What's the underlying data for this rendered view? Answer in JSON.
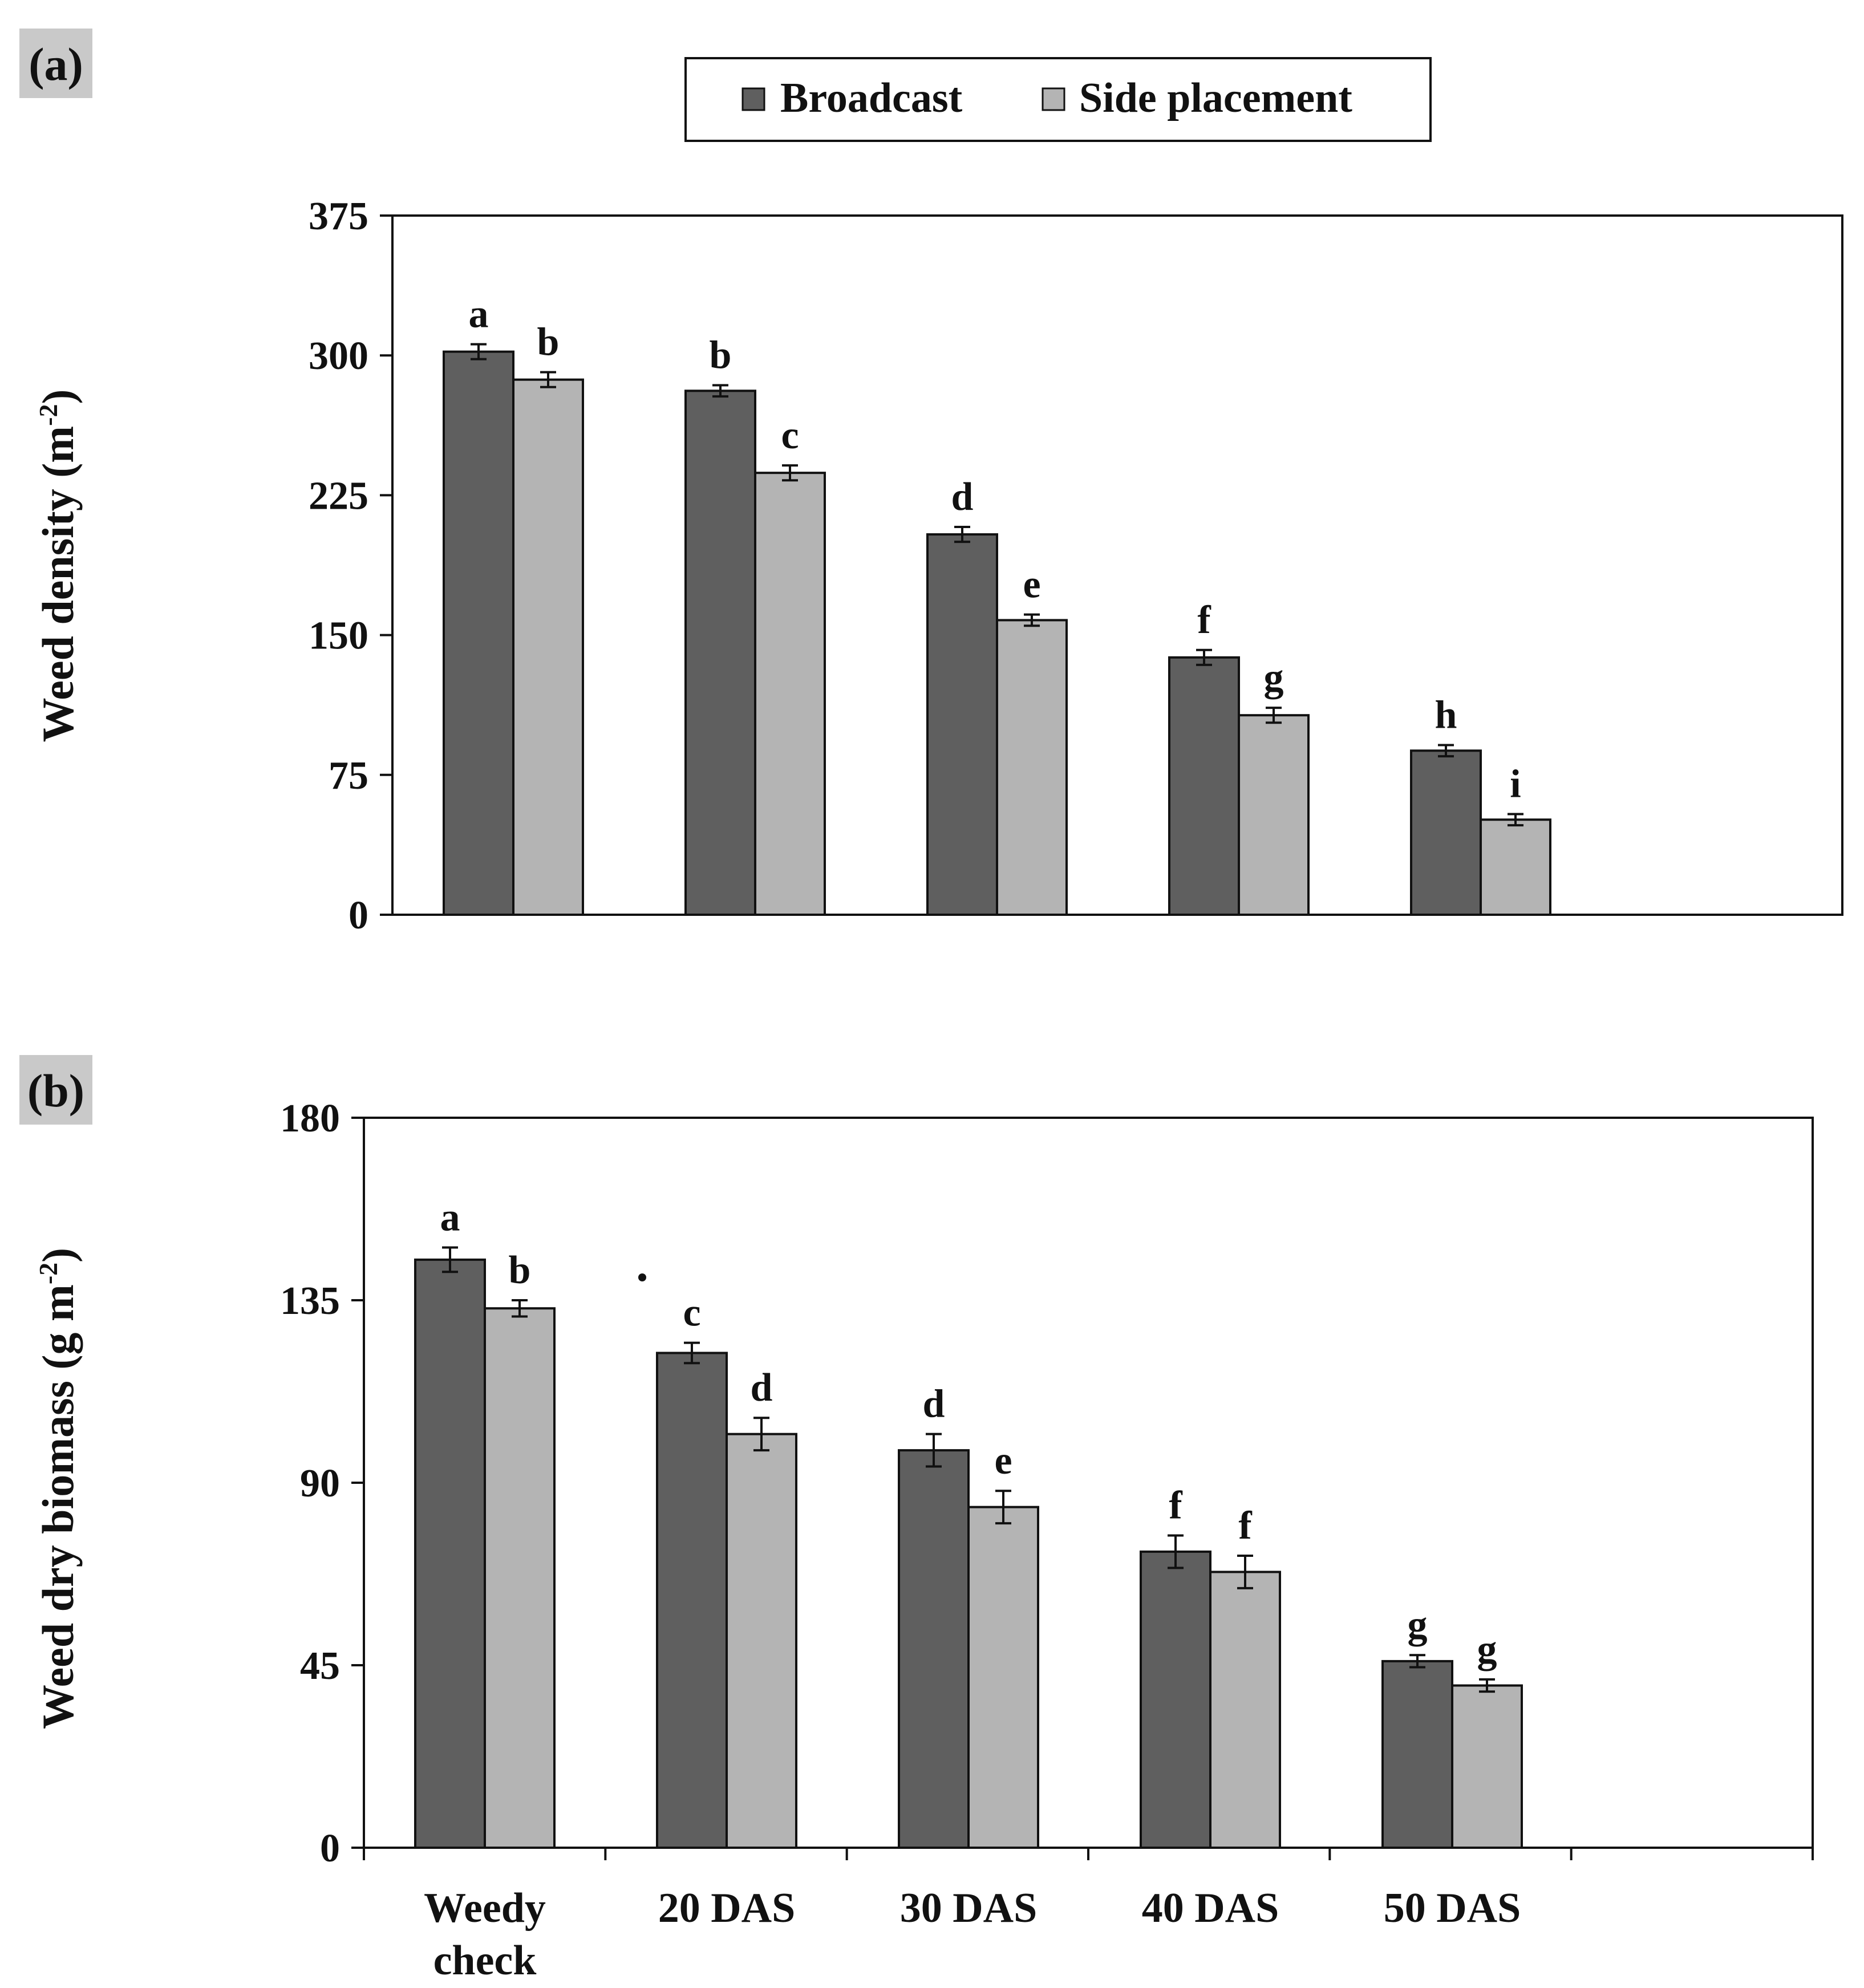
{
  "figure": {
    "panel_a_tag": "(a)",
    "panel_b_tag": "(b)"
  },
  "legend": {
    "items": [
      {
        "label": "Broadcast",
        "color": "#5f5f5f"
      },
      {
        "label": "Side placement",
        "color": "#b4b4b4"
      }
    ]
  },
  "chart_data": [
    {
      "type": "bar",
      "panel": "(a)",
      "title": "",
      "xlabel": "",
      "ylabel": "Weed density (m",
      "ylabel_sup": "-2",
      "ylabel_close": ")",
      "ylim": [
        0,
        375
      ],
      "yticks": [
        0,
        75,
        150,
        225,
        300,
        375
      ],
      "grid": false,
      "categories": [
        "Weedy check",
        "20 DAS",
        "30 DAS",
        "40 DAS",
        "50 DAS"
      ],
      "series": [
        {
          "name": "Broadcast",
          "color": "#5f5f5f",
          "values": [
            302,
            281,
            204,
            138,
            88
          ],
          "errors": [
            4,
            3,
            4,
            4,
            3
          ],
          "letters": [
            "a",
            "b",
            "d",
            "f",
            "h"
          ]
        },
        {
          "name": "Side placement",
          "color": "#b4b4b4",
          "values": [
            287,
            237,
            158,
            107,
            51
          ],
          "errors": [
            4,
            4,
            3,
            4,
            3
          ],
          "letters": [
            "b",
            "c",
            "e",
            "g",
            "i"
          ]
        }
      ]
    },
    {
      "type": "bar",
      "panel": "(b)",
      "title": "",
      "xlabel": "",
      "ylabel": "Weed dry biomass (g m",
      "ylabel_sup": "-2",
      "ylabel_close": ")",
      "ylim": [
        0,
        180
      ],
      "yticks": [
        0,
        45,
        90,
        135,
        180
      ],
      "grid": false,
      "categories": [
        "Weedy check",
        "20 DAS",
        "30 DAS",
        "40 DAS",
        "50 DAS"
      ],
      "series": [
        {
          "name": "Broadcast",
          "color": "#5f5f5f",
          "values": [
            145,
            122,
            98,
            73,
            46
          ],
          "errors": [
            3,
            2.5,
            4,
            4,
            1.5
          ],
          "letters": [
            "a",
            "c",
            "d",
            "f",
            "g"
          ]
        },
        {
          "name": "Side placement",
          "color": "#b4b4b4",
          "values": [
            133,
            102,
            84,
            68,
            40
          ],
          "errors": [
            2,
            4,
            4,
            4,
            1.5
          ],
          "letters": [
            "b",
            "d",
            "e",
            "f",
            "g"
          ]
        }
      ]
    }
  ]
}
